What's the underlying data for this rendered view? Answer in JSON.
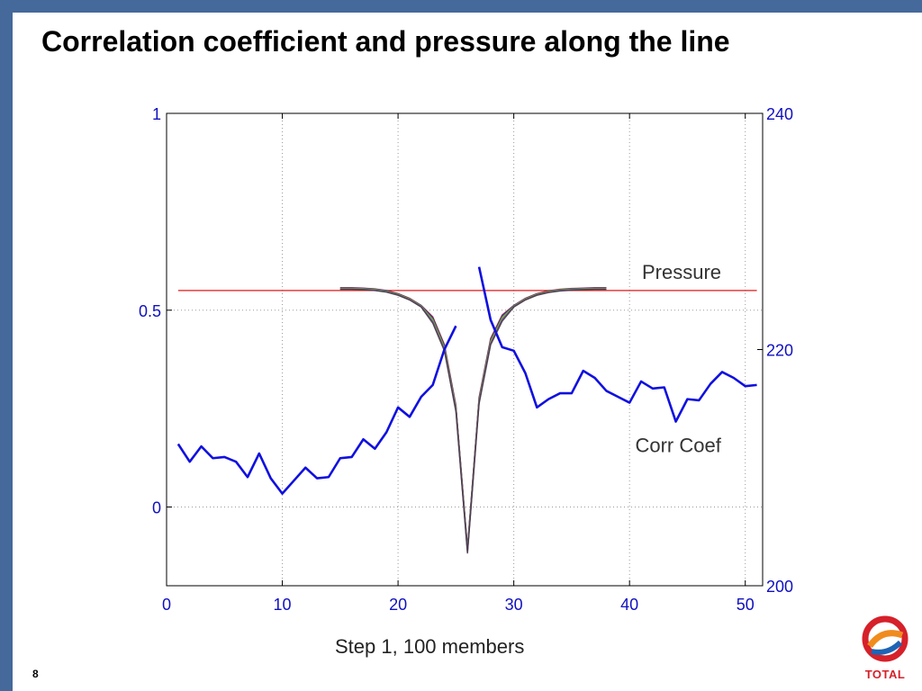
{
  "slide": {
    "title": "Correlation coefficient and pressure along the line",
    "caption": "Step 1, 100 members",
    "page_number": "8",
    "logo_text": "TOTAL",
    "frame_color": "#45699a",
    "logo_colors": [
      "#d6202a",
      "#f08c1e",
      "#1e64b4"
    ]
  },
  "chart_data": {
    "type": "line",
    "title": "",
    "xlabel": "",
    "ylabel": "",
    "xlim": [
      0,
      51.5
    ],
    "ylim_left": [
      -0.2,
      1
    ],
    "ylim_right": [
      200,
      240
    ],
    "x_ticks": [
      0,
      10,
      20,
      30,
      40,
      50
    ],
    "y_ticks_left": [
      0,
      0.5,
      1
    ],
    "y_ticks_right": [
      200,
      220,
      240
    ],
    "grid": true,
    "annotations": [
      {
        "text": "Pressure",
        "x": 44.5,
        "y": 0.58
      },
      {
        "text": "Corr Coef",
        "x": 44.2,
        "y": 0.14
      }
    ],
    "pressure_line": {
      "color": "#e01818",
      "y_right": 225.0,
      "x": [
        1,
        51
      ]
    },
    "pressure_series": {
      "color": "#1010e0",
      "axis": "right",
      "segments": [
        {
          "x": [
            1,
            2,
            3,
            4,
            5,
            6,
            7,
            8,
            9,
            10,
            11,
            12,
            13,
            14,
            15,
            16,
            17,
            18,
            19,
            20,
            21,
            22,
            23,
            24,
            25
          ],
          "y": [
            212.0,
            210.5,
            211.8,
            210.8,
            210.9,
            210.5,
            209.2,
            211.2,
            209.1,
            207.8,
            208.9,
            210.0,
            209.1,
            209.2,
            210.8,
            210.9,
            212.4,
            211.6,
            213.0,
            215.1,
            214.3,
            216.0,
            217.0,
            220.0,
            222.0
          ]
        },
        {
          "x": [
            27,
            28,
            29,
            30,
            31,
            32,
            33,
            34,
            35,
            36,
            37,
            38,
            39,
            40,
            41,
            42,
            43,
            44,
            45,
            46,
            47,
            48,
            49,
            50,
            51
          ],
          "y": [
            227.0,
            222.5,
            220.2,
            219.9,
            218.0,
            215.1,
            215.8,
            216.3,
            216.3,
            218.2,
            217.6,
            216.5,
            216.0,
            215.5,
            217.3,
            216.7,
            216.8,
            213.9,
            215.8,
            215.7,
            217.1,
            218.1,
            217.6,
            216.9,
            217.0
          ]
        }
      ]
    },
    "corr_coef_series": {
      "colors": [
        "#d01818",
        "#1010d0",
        "#20a020",
        "#e0a000",
        "#20a0a0",
        "#a020a0",
        "#404040"
      ],
      "x": [
        15,
        16,
        17,
        18,
        19,
        20,
        21,
        22,
        23,
        24,
        25,
        26,
        27,
        28,
        29,
        30,
        31,
        32,
        33,
        34,
        35,
        36,
        37,
        38
      ],
      "y": [
        0.555,
        0.555,
        0.554,
        0.552,
        0.548,
        0.54,
        0.528,
        0.51,
        0.475,
        0.405,
        0.25,
        -0.11,
        0.27,
        0.42,
        0.48,
        0.51,
        0.528,
        0.54,
        0.547,
        0.551,
        0.553,
        0.554,
        0.555,
        0.555
      ]
    }
  }
}
